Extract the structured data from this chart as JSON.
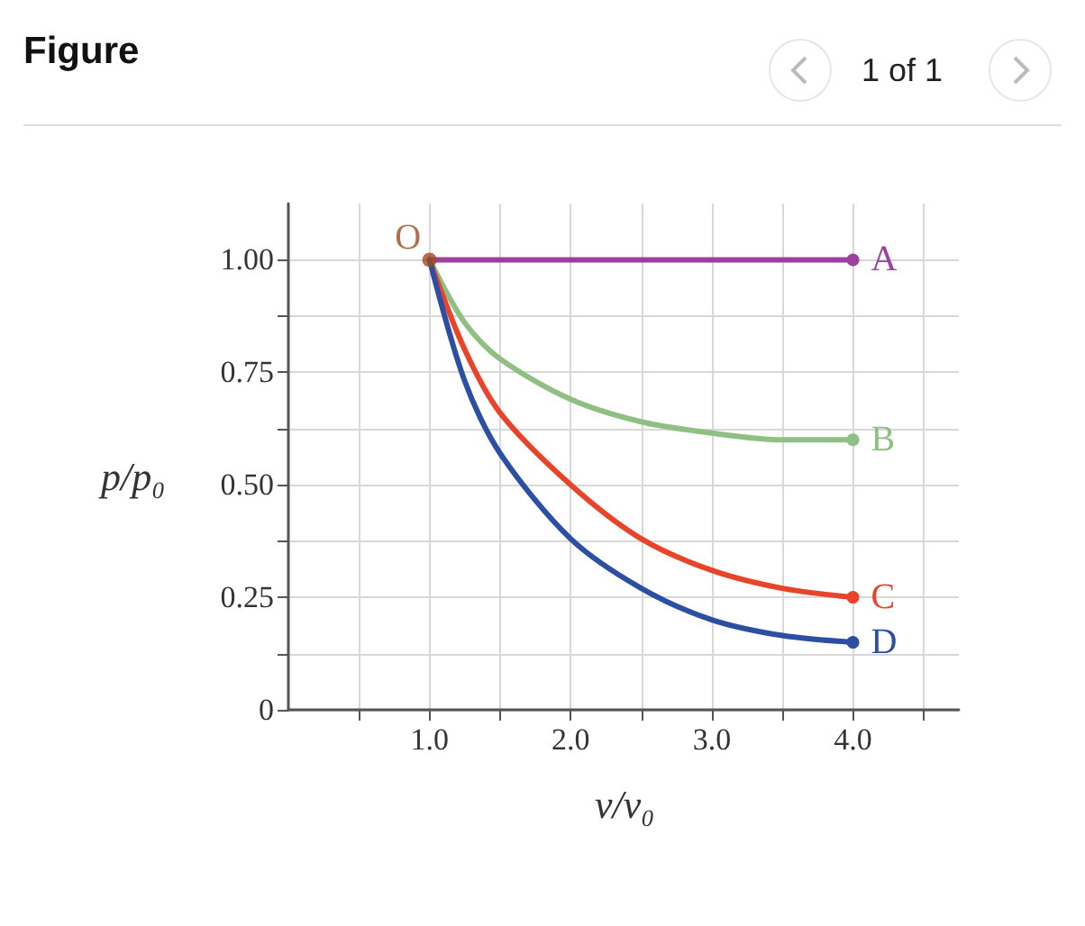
{
  "chart_data": {
    "type": "line",
    "title": "Figure",
    "xlabel": "v/v₀",
    "ylabel": "p/p₀",
    "xlim": [
      0,
      4.75
    ],
    "ylim": [
      0,
      1.125
    ],
    "xticks": [
      {
        "value": 0.5,
        "label": null
      },
      {
        "value": 1,
        "label": "1.0"
      },
      {
        "value": 1.5,
        "label": null
      },
      {
        "value": 2,
        "label": "2.0"
      },
      {
        "value": 2.5,
        "label": null
      },
      {
        "value": 3,
        "label": "3.0"
      },
      {
        "value": 3.5,
        "label": null
      },
      {
        "value": 4,
        "label": "4.0"
      },
      {
        "value": 4.5,
        "label": null
      }
    ],
    "yticks": [
      0,
      {
        "value": 0.125,
        "label": null
      },
      {
        "value": 0.25,
        "label": "0.25"
      },
      {
        "value": 0.375,
        "label": null
      },
      {
        "value": 0.5,
        "label": "0.50"
      },
      {
        "value": 0.625,
        "label": null
      },
      {
        "value": 0.75,
        "label": "0.75"
      },
      {
        "value": 0.875,
        "label": null
      },
      {
        "value": 1,
        "label": "1.00"
      }
    ],
    "grid": true,
    "legend": false,
    "line_style": "solid",
    "x": [
      1,
      1.25,
      1.5,
      2,
      2.5,
      3,
      3.5,
      4
    ],
    "series": [
      {
        "name": "A",
        "color": "#9b3fa0",
        "values": [
          1,
          1,
          1,
          1,
          1,
          1,
          1,
          1
        ]
      },
      {
        "name": "B",
        "color": "#8fbf82",
        "values": [
          1,
          0.86,
          0.78,
          0.69,
          0.64,
          0.615,
          0.6,
          0.6
        ]
      },
      {
        "name": "C",
        "color": "#e8442a",
        "values": [
          1,
          0.8,
          0.66,
          0.5,
          0.38,
          0.31,
          0.27,
          0.25
        ]
      },
      {
        "name": "D",
        "color": "#2d4fa3",
        "values": [
          1,
          0.73,
          0.57,
          0.38,
          0.27,
          0.2,
          0.165,
          0.15
        ]
      }
    ],
    "annotations": [
      {
        "text": "O",
        "x": 1,
        "y": 1
      },
      "1 of 1"
    ]
  }
}
